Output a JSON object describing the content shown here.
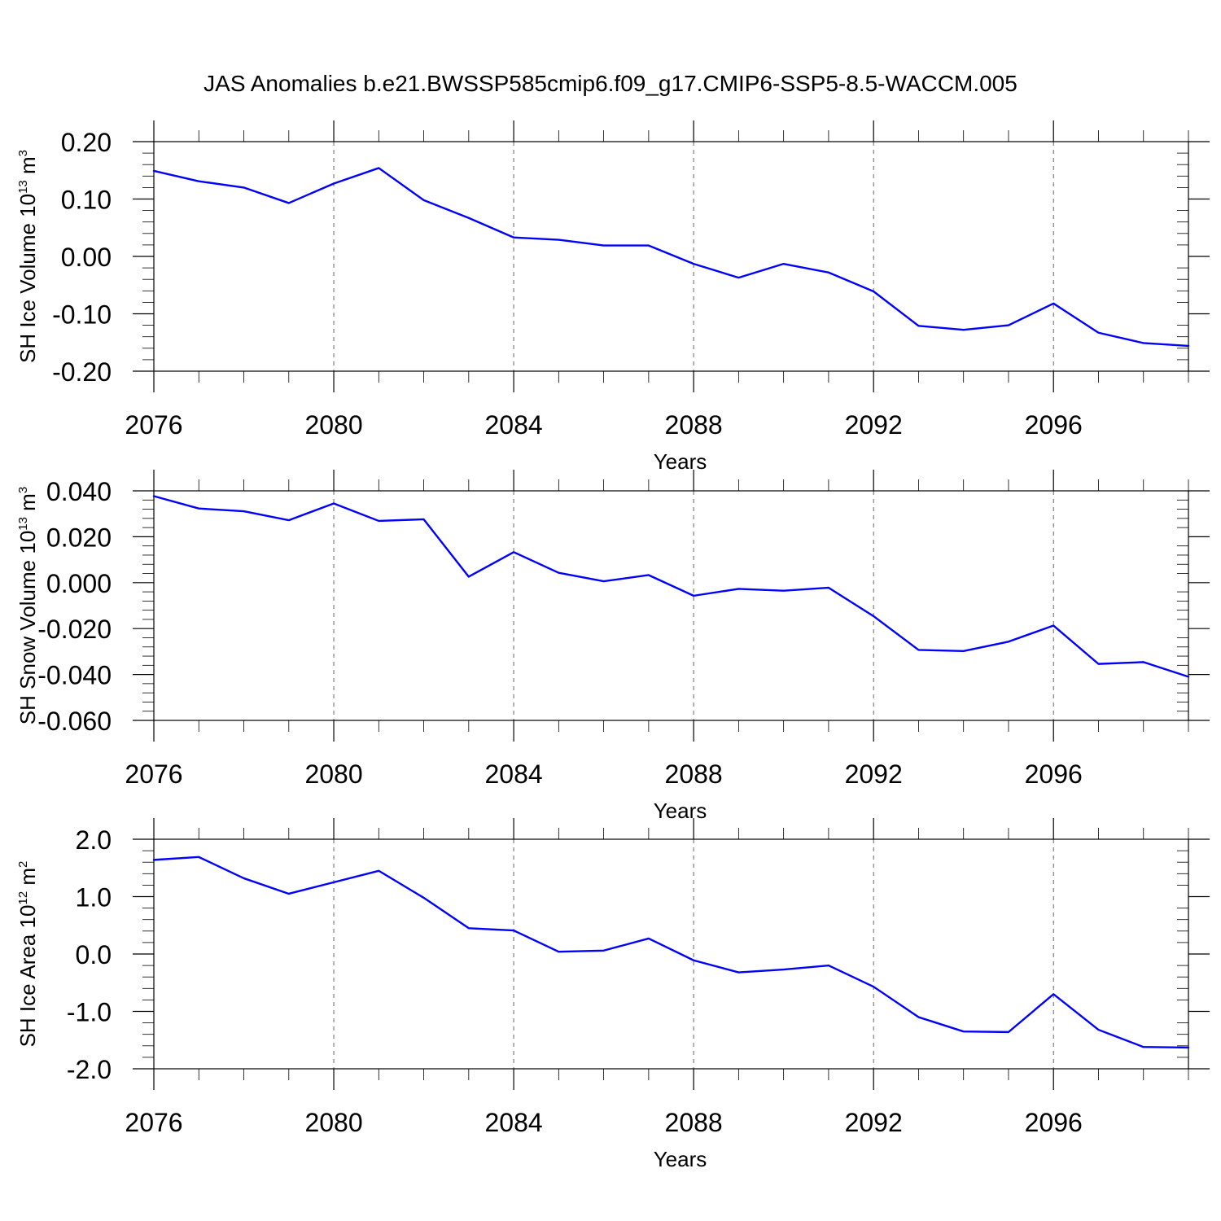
{
  "title": "JAS Anomalies b.e21.BWSSP585cmip6.f09_g17.CMIP6-SSP5-8.5-WACCM.005",
  "line_color": "#0000ff",
  "chart_data": [
    {
      "type": "line",
      "name": "ice-volume",
      "ylabel_text": "SH Ice Volume 10",
      "ylabel_exp": "13",
      "ylabel_unit": " m",
      "ylabel_unit_exp": "3",
      "xlabel": "Years",
      "xlim": [
        2076,
        2099
      ],
      "ylim": [
        -0.2,
        0.2
      ],
      "xticks": [
        2076,
        2080,
        2084,
        2088,
        2092,
        2096
      ],
      "xtick_labels": [
        "2076",
        "2080",
        "2084",
        "2088",
        "2092",
        "2096"
      ],
      "yticks": [
        0.2,
        0.1,
        0.0,
        -0.1,
        -0.2
      ],
      "ytick_labels": [
        "0.20",
        "0.10",
        "0.00",
        "-0.10",
        "-0.20"
      ],
      "x": [
        2076,
        2077,
        2078,
        2079,
        2080,
        2081,
        2082,
        2083,
        2084,
        2085,
        2086,
        2087,
        2088,
        2089,
        2090,
        2091,
        2092,
        2093,
        2094,
        2095,
        2096,
        2097,
        2098,
        2099
      ],
      "values": [
        0.149,
        0.131,
        0.12,
        0.093,
        0.127,
        0.154,
        0.098,
        0.067,
        0.033,
        0.029,
        0.019,
        0.019,
        -0.013,
        -0.037,
        -0.013,
        -0.028,
        -0.061,
        -0.121,
        -0.128,
        -0.12,
        -0.082,
        -0.133,
        -0.151,
        -0.156
      ]
    },
    {
      "type": "line",
      "name": "snow-volume",
      "ylabel_text": "SH Snow Volume 10",
      "ylabel_exp": "13",
      "ylabel_unit": " m",
      "ylabel_unit_exp": "3",
      "xlabel": "Years",
      "xlim": [
        2076,
        2099
      ],
      "ylim": [
        -0.06,
        0.04
      ],
      "xticks": [
        2076,
        2080,
        2084,
        2088,
        2092,
        2096
      ],
      "xtick_labels": [
        "2076",
        "2080",
        "2084",
        "2088",
        "2092",
        "2096"
      ],
      "yticks": [
        0.04,
        0.02,
        0.0,
        -0.02,
        -0.04,
        -0.06
      ],
      "ytick_labels": [
        "0.040",
        "0.020",
        "0.000",
        "-0.020",
        "-0.040",
        "-0.060"
      ],
      "x": [
        2076,
        2077,
        2078,
        2079,
        2080,
        2081,
        2082,
        2083,
        2084,
        2085,
        2086,
        2087,
        2088,
        2089,
        2090,
        2091,
        2092,
        2093,
        2094,
        2095,
        2096,
        2097,
        2098,
        2099
      ],
      "values": [
        0.0377,
        0.0323,
        0.0311,
        0.0272,
        0.0345,
        0.0269,
        0.0276,
        0.0026,
        0.0133,
        0.0043,
        0.0006,
        0.0033,
        -0.0057,
        -0.0027,
        -0.0035,
        -0.0022,
        -0.0146,
        -0.0293,
        -0.0298,
        -0.0257,
        -0.0187,
        -0.0354,
        -0.0346,
        -0.041
      ]
    },
    {
      "type": "line",
      "name": "ice-area",
      "ylabel_text": "SH Ice Area 10",
      "ylabel_exp": "12",
      "ylabel_unit": " m",
      "ylabel_unit_exp": "2",
      "xlabel": "Years",
      "xlim": [
        2076,
        2099
      ],
      "ylim": [
        -2.0,
        2.0
      ],
      "xticks": [
        2076,
        2080,
        2084,
        2088,
        2092,
        2096
      ],
      "xtick_labels": [
        "2076",
        "2080",
        "2084",
        "2088",
        "2092",
        "2096"
      ],
      "yticks": [
        2.0,
        1.0,
        0.0,
        -1.0,
        -2.0
      ],
      "ytick_labels": [
        "2.0",
        "1.0",
        "0.0",
        "-1.0",
        "-2.0"
      ],
      "x": [
        2076,
        2077,
        2078,
        2079,
        2080,
        2081,
        2082,
        2083,
        2084,
        2085,
        2086,
        2087,
        2088,
        2089,
        2090,
        2091,
        2092,
        2093,
        2094,
        2095,
        2096,
        2097,
        2098,
        2099
      ],
      "values": [
        1.64,
        1.69,
        1.32,
        1.05,
        1.25,
        1.45,
        0.98,
        0.45,
        0.41,
        0.04,
        0.06,
        0.27,
        -0.11,
        -0.32,
        -0.27,
        -0.2,
        -0.57,
        -1.1,
        -1.35,
        -1.36,
        -0.7,
        -1.32,
        -1.62,
        -1.63
      ]
    }
  ]
}
